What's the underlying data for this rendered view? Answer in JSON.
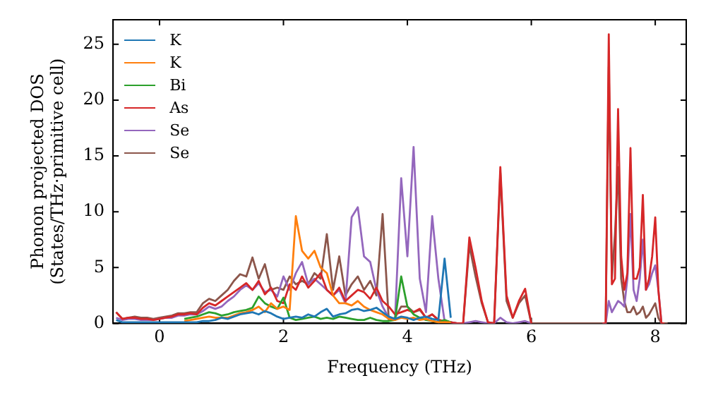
{
  "chart_data": {
    "type": "line",
    "xlabel": "Frequency (THz)",
    "ylabel": "Phonon projected DOS\n(States/THz·primitive cell)",
    "xlim": [
      -0.75,
      8.5
    ],
    "ylim": [
      0,
      27.2
    ],
    "xticks": [
      0,
      2,
      4,
      6,
      8
    ],
    "yticks": [
      0,
      5,
      10,
      15,
      20,
      25
    ],
    "grid": false,
    "legend": "top left",
    "marker": "none",
    "line_style": "solid",
    "x": [
      -0.7,
      -0.6,
      -0.5,
      -0.4,
      -0.3,
      -0.2,
      -0.1,
      0,
      0.1,
      0.2,
      0.3,
      0.4,
      0.5,
      0.6,
      0.7,
      0.8,
      0.9,
      1.0,
      1.1,
      1.2,
      1.3,
      1.4,
      1.5,
      1.6,
      1.7,
      1.8,
      1.9,
      2.0,
      2.1,
      2.2,
      2.3,
      2.4,
      2.5,
      2.6,
      2.7,
      2.8,
      2.9,
      3.0,
      3.1,
      3.2,
      3.3,
      3.4,
      3.5,
      3.6,
      3.7,
      3.8,
      3.9,
      4.0,
      4.1,
      4.2,
      4.3,
      4.4,
      4.5,
      4.6,
      4.7,
      4.8,
      4.9,
      5.0,
      5.1,
      5.2,
      5.3,
      5.4,
      5.5,
      5.6,
      5.7,
      5.8,
      5.9,
      6.0,
      6.1,
      6.2,
      7.15,
      7.2,
      7.25,
      7.3,
      7.35,
      7.4,
      7.45,
      7.5,
      7.55,
      7.6,
      7.65,
      7.7,
      7.75,
      7.8,
      7.85,
      7.9,
      7.95,
      8.0,
      8.05,
      8.1,
      8.15,
      8.2
    ],
    "series": [
      {
        "name": "K",
        "color": "#1f77b4",
        "values": [
          0.3,
          0.1,
          0.1,
          0.1,
          0.1,
          0.1,
          0.1,
          0.1,
          0.1,
          0.1,
          0.1,
          0.1,
          0.1,
          0.1,
          0.2,
          0.2,
          0.3,
          0.5,
          0.4,
          0.6,
          0.8,
          0.9,
          1.0,
          0.8,
          1.1,
          0.9,
          0.6,
          0.4,
          0.5,
          0.6,
          0.5,
          0.8,
          0.6,
          1.0,
          1.3,
          0.6,
          0.8,
          0.9,
          1.2,
          1.3,
          1.1,
          1.2,
          1.4,
          1.0,
          0.6,
          0.4,
          0.6,
          0.5,
          0.3,
          0.5,
          0.6,
          0.4,
          0.3,
          5.8,
          0.5,
          null,
          null,
          null,
          null,
          null,
          null,
          null,
          null,
          null,
          null,
          null,
          null,
          null,
          null,
          null,
          null,
          null,
          null,
          null,
          null,
          null,
          null,
          null,
          null,
          null,
          null,
          null,
          null,
          null,
          null,
          null,
          null,
          null,
          null,
          null,
          null,
          null
        ]
      },
      {
        "name": "K",
        "color": "#ff7f0e",
        "values": [
          null,
          null,
          null,
          null,
          null,
          null,
          null,
          null,
          null,
          null,
          null,
          0.2,
          0.3,
          0.4,
          0.5,
          0.6,
          0.5,
          0.5,
          0.5,
          0.7,
          0.9,
          1.0,
          1.2,
          1.5,
          1.0,
          1.8,
          1.3,
          1.5,
          1.2,
          9.6,
          6.5,
          5.8,
          6.5,
          5.0,
          4.5,
          2.5,
          1.8,
          1.8,
          1.6,
          2.0,
          1.5,
          1.2,
          1.0,
          0.8,
          0.4,
          0.3,
          0.5,
          0.4,
          0.5,
          0.3,
          0.4,
          0.2,
          0.1,
          0.1,
          0.1,
          null,
          null,
          null,
          null,
          null,
          null,
          null,
          null,
          null,
          null,
          null,
          null,
          null,
          null,
          null,
          null,
          null,
          null,
          null,
          null,
          null,
          null,
          null,
          null,
          null,
          null,
          null,
          null,
          null,
          null,
          null,
          null,
          null,
          null,
          null,
          null,
          null
        ]
      },
      {
        "name": "Bi",
        "color": "#2ca02c",
        "values": [
          null,
          null,
          null,
          null,
          null,
          null,
          null,
          null,
          null,
          null,
          null,
          0.4,
          0.5,
          0.6,
          0.8,
          1.0,
          0.9,
          0.7,
          0.8,
          1.0,
          1.1,
          1.2,
          1.4,
          2.4,
          1.8,
          1.5,
          1.3,
          2.3,
          0.5,
          0.3,
          0.4,
          0.5,
          0.6,
          0.4,
          0.5,
          0.4,
          0.6,
          0.5,
          0.4,
          0.3,
          0.3,
          0.5,
          0.3,
          0.2,
          0.2,
          0.3,
          4.2,
          1.5,
          0.8,
          0.5,
          0.3,
          0.2,
          0.1,
          0.3,
          0.1,
          null,
          null,
          null,
          null,
          null,
          null,
          null,
          null,
          null,
          null,
          null,
          null,
          null,
          null,
          null,
          null,
          null,
          null,
          null,
          null,
          null,
          null,
          null,
          null,
          null,
          null,
          null,
          null,
          null,
          null,
          null,
          null,
          null,
          null,
          null,
          null,
          null
        ]
      },
      {
        "name": "As",
        "color": "#d62728",
        "values": [
          1.0,
          0.4,
          0.5,
          0.5,
          0.4,
          0.4,
          0.3,
          0.4,
          0.5,
          0.6,
          0.8,
          0.8,
          0.9,
          0.8,
          1.4,
          1.8,
          1.6,
          2.0,
          2.4,
          2.8,
          3.2,
          3.6,
          3.0,
          3.8,
          2.6,
          3.2,
          2.0,
          1.8,
          3.5,
          3.0,
          4.2,
          3.2,
          3.8,
          4.5,
          3.0,
          2.5,
          3.2,
          2.0,
          2.5,
          3.0,
          2.8,
          2.2,
          3.2,
          2.0,
          1.5,
          0.8,
          1.0,
          1.2,
          1.0,
          1.3,
          0.5,
          0.8,
          0.3,
          0.2,
          0.1,
          0,
          0,
          7.7,
          5.0,
          2.0,
          0.1,
          0,
          14,
          2.5,
          0.5,
          2.0,
          3.1,
          0,
          null,
          null,
          0,
          0,
          25.9,
          3.5,
          4,
          19.2,
          6,
          3,
          4.5,
          15.7,
          4,
          4,
          5,
          11.5,
          3,
          4,
          6,
          9.5,
          3,
          0,
          0,
          null
        ]
      },
      {
        "name": "Se",
        "color": "#9467bd",
        "values": [
          0.5,
          0.3,
          0.4,
          0.4,
          0.3,
          0.3,
          0.3,
          0.4,
          0.5,
          0.5,
          0.7,
          0.7,
          0.8,
          0.8,
          1.1,
          1.5,
          1.3,
          1.5,
          2.0,
          2.4,
          3.0,
          3.4,
          3.0,
          3.6,
          2.8,
          3.0,
          2.4,
          4.2,
          3.0,
          4.5,
          5.5,
          3.5,
          4.0,
          3.5,
          3.0,
          2.5,
          3.0,
          1.8,
          9.5,
          10.4,
          6.0,
          5.5,
          3.0,
          1.5,
          0.5,
          0.3,
          13.0,
          6.0,
          15.8,
          4.0,
          1.0,
          9.6,
          4.0,
          0.2,
          0.1,
          0,
          0,
          0.1,
          0.2,
          0.1,
          0,
          0,
          0.5,
          0.1,
          0,
          0.1,
          0.2,
          0,
          null,
          null,
          0,
          0,
          2,
          1,
          1.5,
          2,
          1.8,
          1.5,
          4,
          9.8,
          3,
          2,
          4,
          7.5,
          3,
          3.5,
          4.5,
          5.2,
          3,
          0,
          null,
          null
        ]
      },
      {
        "name": "Se",
        "color": "#8c564b",
        "values": [
          1.0,
          0.4,
          0.5,
          0.6,
          0.5,
          0.5,
          0.4,
          0.5,
          0.6,
          0.7,
          0.9,
          0.9,
          1.0,
          1.0,
          1.8,
          2.2,
          2.0,
          2.5,
          3.0,
          3.8,
          4.4,
          4.2,
          5.9,
          4.0,
          5.3,
          3.0,
          3.2,
          3.0,
          4.2,
          3.5,
          3.8,
          3.5,
          4.5,
          4.0,
          8.0,
          3.0,
          6.0,
          2.5,
          3.5,
          4.2,
          3.0,
          3.8,
          2.5,
          9.8,
          0.3,
          0.5,
          1.5,
          1.5,
          1.0,
          1.2,
          0.5,
          0.8,
          0.3,
          0.2,
          0.1,
          0,
          0,
          7.0,
          4.2,
          1.8,
          0.1,
          0,
          13.5,
          2.0,
          0.5,
          1.8,
          2.5,
          0,
          0,
          0,
          0,
          0,
          23,
          4,
          8,
          14,
          4,
          2,
          1,
          1,
          1.5,
          0.8,
          1,
          1.5,
          0.5,
          0.8,
          1.3,
          1.8,
          0.5,
          0,
          0,
          0
        ]
      }
    ]
  }
}
